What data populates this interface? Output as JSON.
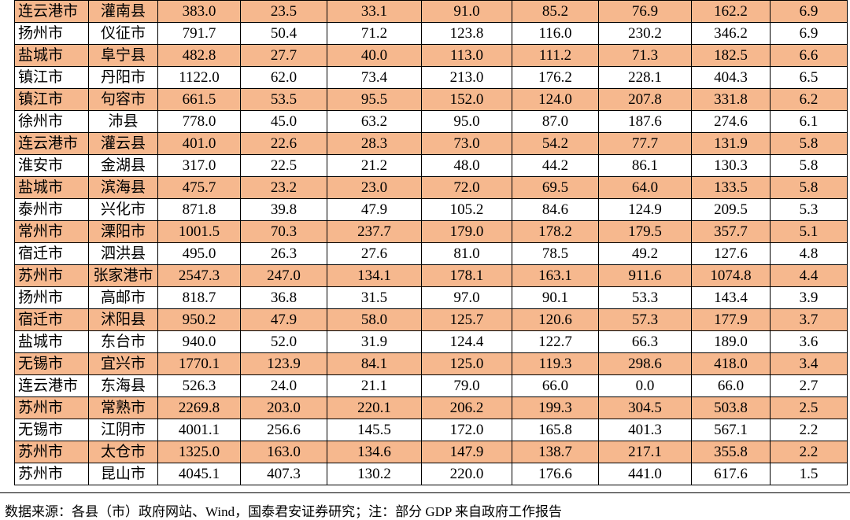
{
  "table": {
    "rows": [
      [
        "连云港市",
        "灌南县",
        "383.0",
        "23.5",
        "33.1",
        "91.0",
        "85.2",
        "76.9",
        "162.2",
        "6.9"
      ],
      [
        "扬州市",
        "仪征市",
        "791.7",
        "50.4",
        "71.2",
        "123.8",
        "116.0",
        "230.2",
        "346.2",
        "6.9"
      ],
      [
        "盐城市",
        "阜宁县",
        "482.8",
        "27.7",
        "40.0",
        "113.0",
        "111.2",
        "71.3",
        "182.5",
        "6.6"
      ],
      [
        "镇江市",
        "丹阳市",
        "1122.0",
        "62.0",
        "73.4",
        "213.0",
        "176.2",
        "228.1",
        "404.3",
        "6.5"
      ],
      [
        "镇江市",
        "句容市",
        "661.5",
        "53.5",
        "95.5",
        "152.0",
        "124.0",
        "207.8",
        "331.8",
        "6.2"
      ],
      [
        "徐州市",
        "沛县",
        "778.0",
        "45.0",
        "63.2",
        "95.0",
        "87.0",
        "187.6",
        "274.6",
        "6.1"
      ],
      [
        "连云港市",
        "灌云县",
        "401.0",
        "22.6",
        "28.3",
        "73.0",
        "54.2",
        "77.7",
        "131.9",
        "5.8"
      ],
      [
        "淮安市",
        "金湖县",
        "317.0",
        "22.5",
        "21.2",
        "48.0",
        "44.2",
        "86.1",
        "130.3",
        "5.8"
      ],
      [
        "盐城市",
        "滨海县",
        "475.7",
        "23.2",
        "23.0",
        "72.0",
        "69.5",
        "64.0",
        "133.5",
        "5.8"
      ],
      [
        "泰州市",
        "兴化市",
        "871.8",
        "39.8",
        "47.9",
        "105.2",
        "84.6",
        "124.9",
        "209.5",
        "5.3"
      ],
      [
        "常州市",
        "溧阳市",
        "1001.5",
        "70.3",
        "237.7",
        "179.0",
        "178.2",
        "179.5",
        "357.7",
        "5.1"
      ],
      [
        "宿迁市",
        "泗洪县",
        "495.0",
        "26.3",
        "27.6",
        "81.0",
        "78.5",
        "49.2",
        "127.6",
        "4.8"
      ],
      [
        "苏州市",
        "张家港市",
        "2547.3",
        "247.0",
        "134.1",
        "178.1",
        "163.1",
        "911.6",
        "1074.8",
        "4.4"
      ],
      [
        "扬州市",
        "高邮市",
        "818.7",
        "36.8",
        "31.5",
        "97.0",
        "90.1",
        "53.3",
        "143.4",
        "3.9"
      ],
      [
        "宿迁市",
        "沭阳县",
        "950.2",
        "47.9",
        "58.0",
        "125.7",
        "120.6",
        "57.3",
        "177.9",
        "3.7"
      ],
      [
        "盐城市",
        "东台市",
        "940.0",
        "52.0",
        "31.9",
        "124.4",
        "122.7",
        "66.3",
        "189.0",
        "3.6"
      ],
      [
        "无锡市",
        "宜兴市",
        "1770.1",
        "123.9",
        "84.1",
        "125.0",
        "119.3",
        "298.6",
        "418.0",
        "3.4"
      ],
      [
        "连云港市",
        "东海县",
        "526.3",
        "24.0",
        "21.1",
        "79.0",
        "66.0",
        "0.0",
        "66.0",
        "2.7"
      ],
      [
        "苏州市",
        "常熟市",
        "2269.8",
        "203.0",
        "220.1",
        "206.2",
        "199.3",
        "304.5",
        "503.8",
        "2.5"
      ],
      [
        "无锡市",
        "江阴市",
        "4001.1",
        "256.6",
        "145.5",
        "172.0",
        "165.8",
        "401.3",
        "567.1",
        "2.2"
      ],
      [
        "苏州市",
        "太仓市",
        "1325.0",
        "163.0",
        "134.6",
        "147.9",
        "138.7",
        "217.1",
        "355.8",
        "2.2"
      ],
      [
        "苏州市",
        "昆山市",
        "4045.1",
        "407.3",
        "130.2",
        "220.0",
        "176.6",
        "441.0",
        "617.6",
        "1.5"
      ]
    ]
  },
  "footer": {
    "note": "数据来源：各县（市）政府网站、Wind，国泰君安证券研究；注：部分 GDP 来自政府工作报告"
  }
}
